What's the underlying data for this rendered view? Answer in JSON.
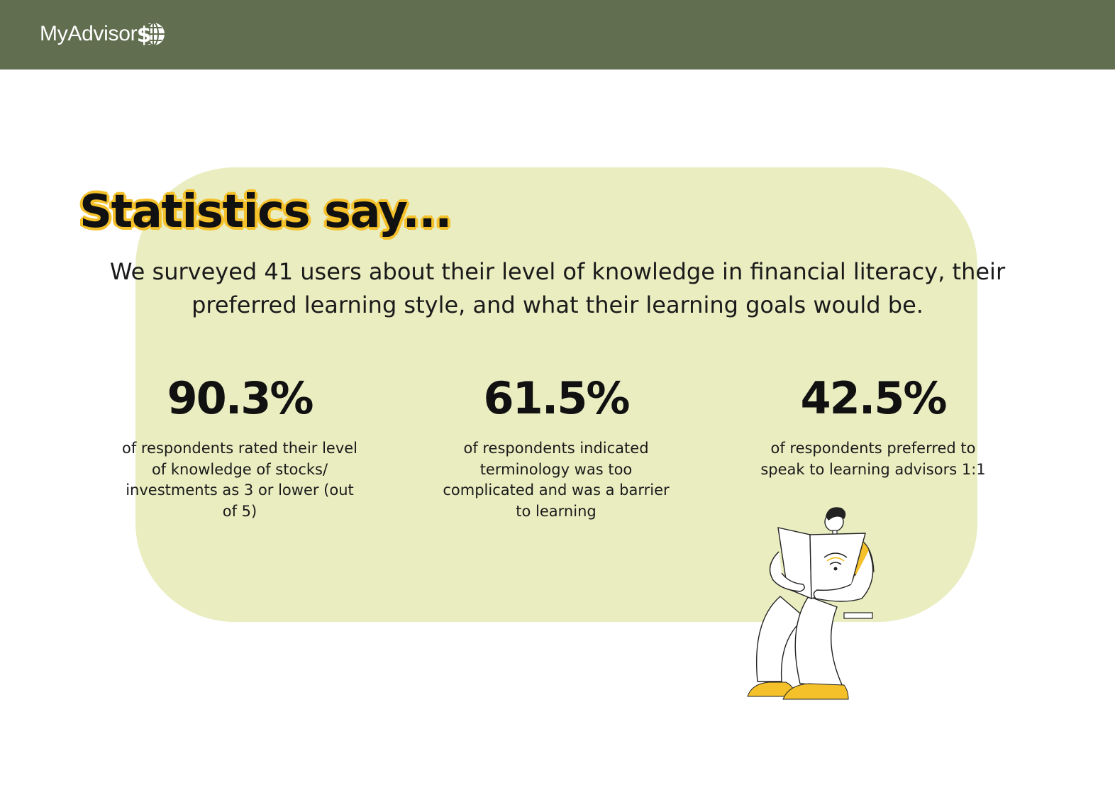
{
  "brand": {
    "name": "MyAdvisor",
    "logo_icon": "dollar-globe-icon",
    "header_color": "#616e50"
  },
  "slide": {
    "title": "Statistics say...",
    "intro": "We surveyed 41 users about their level of knowledge in financial literacy, their preferred learning style, and what their learning goals would be.",
    "panel_color": "#e9edc0",
    "accent_color": "#f5c12a"
  },
  "stats": [
    {
      "value": "90.3%",
      "description": "of respondents rated their level of knowledge of stocks/ investments as 3 or lower (out of 5)"
    },
    {
      "value": "61.5%",
      "description": "of respondents indicated terminology was too complicated and was a barrier to learning"
    },
    {
      "value": "42.5%",
      "description": "of respondents preferred to speak to learning advisors 1:1"
    }
  ],
  "illustration": {
    "icon": "person-reading-book-icon"
  }
}
